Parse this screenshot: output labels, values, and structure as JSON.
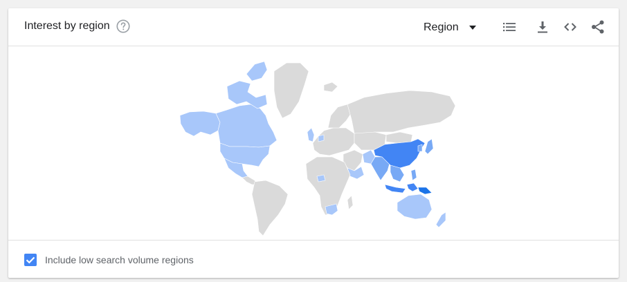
{
  "widget": {
    "title": "Interest by region",
    "help_icon": "help-circle-icon"
  },
  "toolbar": {
    "resolution_label": "Region",
    "icons": [
      "list-view-icon",
      "download-icon",
      "embed-code-icon",
      "share-icon"
    ]
  },
  "legend": {
    "checkbox_label": "Include low search volume regions",
    "checkbox_checked": true
  },
  "colors": {
    "no_data": "#dadada",
    "low": "#a8c7fa",
    "medium": "#78a9f5",
    "high": "#4285f4",
    "highest": "#1a73e8",
    "accent": "#4285f4"
  }
}
